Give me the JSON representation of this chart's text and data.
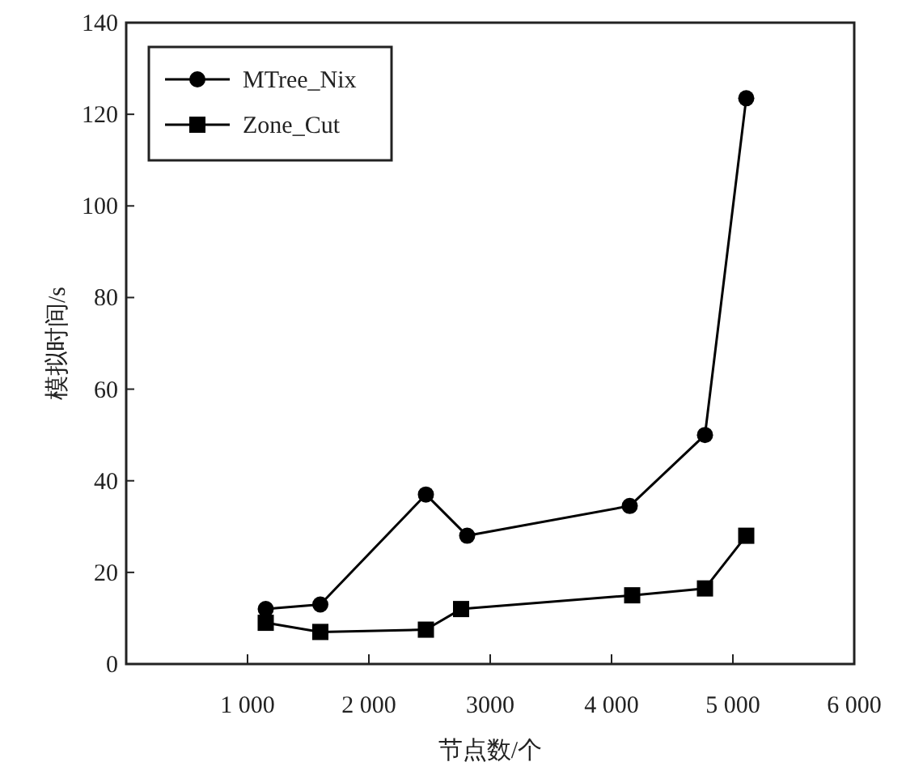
{
  "chart_data": {
    "type": "line",
    "xlabel": "节点数/个",
    "ylabel": "模拟时间/s",
    "xlim": [
      0,
      6000
    ],
    "ylim": [
      0,
      140
    ],
    "xticks": [
      {
        "value": 1000,
        "label": "1 000"
      },
      {
        "value": 2000,
        "label": "2 000"
      },
      {
        "value": 3000,
        "label": "3000"
      },
      {
        "value": 4000,
        "label": "4 000"
      },
      {
        "value": 5000,
        "label": "5 000"
      },
      {
        "value": 6000,
        "label": "6 000"
      }
    ],
    "yticks": [
      0,
      20,
      40,
      60,
      80,
      100,
      120,
      140
    ],
    "legend": "top left",
    "line_style": "solid",
    "grid": false,
    "series": [
      {
        "name": "MTree_Nix",
        "color": "#000000",
        "marker": "circle",
        "x": [
          1150,
          1600,
          2470,
          2810,
          4150,
          4770,
          5110
        ],
        "values": [
          12,
          13,
          37,
          28,
          34.5,
          50,
          123.5
        ]
      },
      {
        "name": "Zone_Cut",
        "color": "#000000",
        "marker": "square",
        "x": [
          1150,
          1600,
          2470,
          2760,
          4170,
          4770,
          5110
        ],
        "values": [
          9,
          7,
          7.5,
          12,
          15,
          16.5,
          28
        ]
      }
    ]
  }
}
